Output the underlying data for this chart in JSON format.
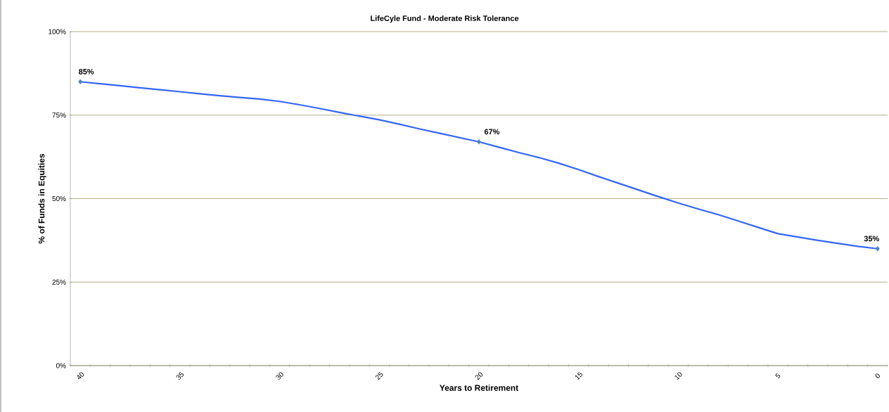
{
  "chart_data": {
    "type": "line",
    "title": "LifeCyle Fund - Moderate Risk Tolerance",
    "xlabel": "Years to Retirement",
    "ylabel": "% of Funds in Equities",
    "x": [
      40,
      39,
      38,
      37,
      36,
      35,
      34,
      33,
      32,
      31,
      30,
      29,
      28,
      27,
      26,
      25,
      24,
      23,
      22,
      21,
      20,
      19,
      18,
      17,
      16,
      15,
      14,
      13,
      12,
      11,
      10,
      9,
      8,
      7,
      6,
      5,
      4,
      3,
      2,
      1,
      0
    ],
    "series": [
      {
        "type": "line",
        "color": "#3366ff",
        "marker": "none",
        "values": [
          85,
          84.4,
          83.8,
          83.2,
          82.6,
          82.0,
          81.4,
          80.8,
          80.3,
          79.8,
          79.1,
          78.1,
          77.0,
          75.8,
          74.7,
          73.6,
          72.3,
          70.9,
          69.6,
          68.3,
          67,
          65.4,
          63.8,
          62.3,
          60.6,
          58.7,
          56.6,
          54.6,
          52.6,
          50.6,
          48.7,
          46.9,
          45.2,
          43.3,
          41.4,
          39.5,
          38.5,
          37.5,
          36.6,
          35.7,
          35
        ]
      },
      {
        "type": "scatter",
        "color": "#4f81bd",
        "marker": "diamond",
        "x": [
          40,
          20,
          0
        ],
        "values": [
          85,
          67,
          35
        ],
        "value_labels": [
          "85%",
          "67%",
          "35%"
        ]
      }
    ],
    "xlim": [
      40.5,
      -0.5
    ],
    "xticks": [
      40,
      35,
      30,
      25,
      20,
      15,
      10,
      5,
      0
    ],
    "ylim": [
      0,
      100
    ],
    "yticks": [
      {
        "value": 0,
        "label": "0%"
      },
      {
        "value": 25,
        "label": "25%"
      },
      {
        "value": 50,
        "label": "50%"
      },
      {
        "value": 75,
        "label": "75%"
      },
      {
        "value": 100,
        "label": "100%"
      }
    ],
    "grid": "y"
  }
}
